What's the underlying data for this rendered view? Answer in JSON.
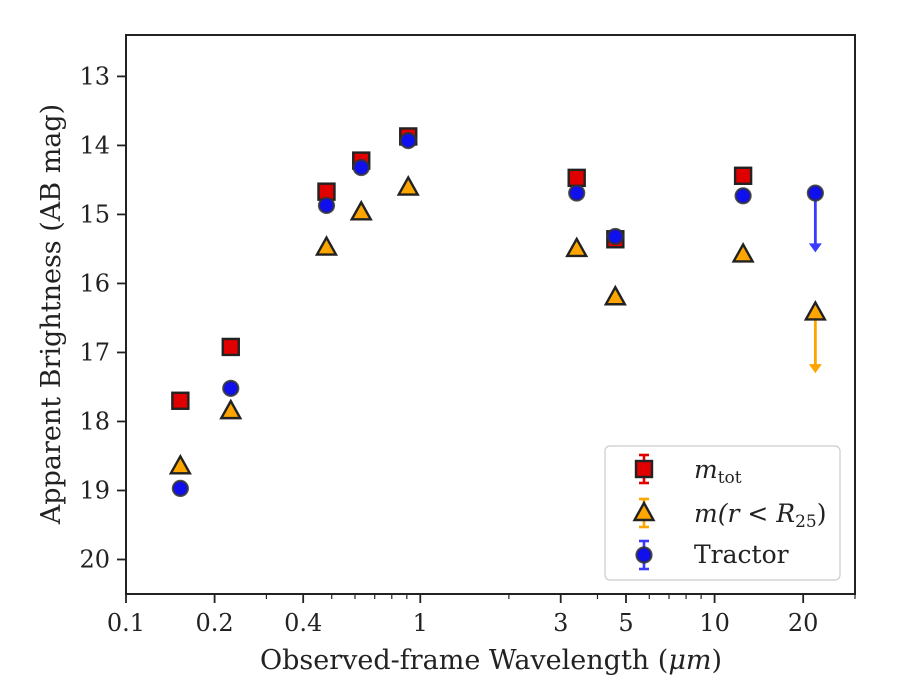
{
  "chart_data": {
    "type": "scatter",
    "xlabel": "Observed-frame Wavelength (",
    "xlabel_unit": "μm",
    "xlabel_close": ")",
    "ylabel": "Apparent Brightness (AB mag)",
    "xscale": "log",
    "xlim": [
      0.1,
      30
    ],
    "ylim": [
      20.5,
      12.4
    ],
    "y_inverted": true,
    "grid": false,
    "legend_position": "lower-right",
    "x_major_ticks": [
      {
        "value": 0.1,
        "label": "0.1"
      },
      {
        "value": 0.2,
        "label": "0.2"
      },
      {
        "value": 0.4,
        "label": "0.4"
      },
      {
        "value": 1,
        "label": "1"
      },
      {
        "value": 3,
        "label": "3"
      },
      {
        "value": 5,
        "label": "5"
      },
      {
        "value": 10,
        "label": "10"
      },
      {
        "value": 20,
        "label": "20"
      }
    ],
    "x_minor_ticks": [
      0.3,
      0.5,
      0.6,
      0.7,
      0.8,
      0.9,
      2,
      4,
      6,
      7,
      8,
      9,
      30
    ],
    "y_ticks": [
      {
        "value": 13,
        "label": "13"
      },
      {
        "value": 14,
        "label": "14"
      },
      {
        "value": 15,
        "label": "15"
      },
      {
        "value": 16,
        "label": "16"
      },
      {
        "value": 17,
        "label": "17"
      },
      {
        "value": 18,
        "label": "18"
      },
      {
        "value": 19,
        "label": "19"
      },
      {
        "value": 20,
        "label": "20"
      }
    ],
    "series": [
      {
        "name": "m_tot",
        "legend_main": "m",
        "legend_sub": "tot",
        "marker": "square",
        "color": "#e00000",
        "errcolor": "#e00000",
        "points": [
          {
            "x": 0.153,
            "y": 17.7
          },
          {
            "x": 0.227,
            "y": 16.92
          },
          {
            "x": 0.48,
            "y": 14.67
          },
          {
            "x": 0.63,
            "y": 14.22
          },
          {
            "x": 0.91,
            "y": 13.87
          },
          {
            "x": 3.4,
            "y": 14.47
          },
          {
            "x": 4.6,
            "y": 15.36
          },
          {
            "x": 12.5,
            "y": 14.44
          }
        ]
      },
      {
        "name": "m(r < R25)",
        "legend_main": "m",
        "legend_open": "(r < R",
        "legend_sub": "25",
        "legend_close": ")",
        "marker": "triangle",
        "color": "#ffa500",
        "errcolor": "#ffa500",
        "points": [
          {
            "x": 0.153,
            "y": 18.65
          },
          {
            "x": 0.227,
            "y": 17.85
          },
          {
            "x": 0.48,
            "y": 15.48
          },
          {
            "x": 0.63,
            "y": 14.97
          },
          {
            "x": 0.91,
            "y": 14.61
          },
          {
            "x": 3.4,
            "y": 15.5
          },
          {
            "x": 4.6,
            "y": 16.2
          },
          {
            "x": 12.5,
            "y": 15.58
          },
          {
            "x": 22,
            "y": 16.42,
            "upper_limit": true,
            "arrow_to": 17.3
          }
        ]
      },
      {
        "name": "Tractor",
        "legend_main": "Tractor",
        "marker": "circle",
        "color": "#1010ee",
        "errcolor": "#3a3aff",
        "points": [
          {
            "x": 0.153,
            "y": 18.97
          },
          {
            "x": 0.227,
            "y": 17.52
          },
          {
            "x": 0.48,
            "y": 14.87
          },
          {
            "x": 0.63,
            "y": 14.32
          },
          {
            "x": 0.91,
            "y": 13.93
          },
          {
            "x": 3.4,
            "y": 14.69
          },
          {
            "x": 4.6,
            "y": 15.32
          },
          {
            "x": 12.5,
            "y": 14.73
          },
          {
            "x": 22,
            "y": 14.69,
            "upper_limit": true,
            "arrow_to": 15.55
          }
        ]
      }
    ]
  }
}
